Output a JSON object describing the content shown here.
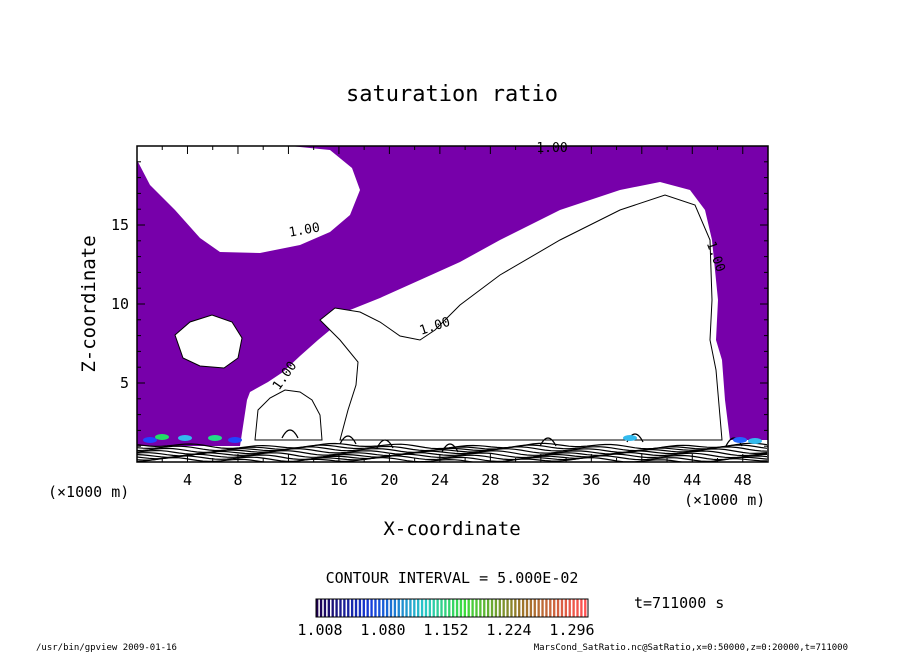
{
  "chart_data": {
    "type": "heatmap",
    "title": "saturation ratio",
    "xlabel": "X-coordinate",
    "ylabel": "Z-coordinate",
    "x_unit": "(×1000 m)",
    "z_unit": "(×1000 m)",
    "xlim": [
      0,
      50
    ],
    "ylim": [
      0,
      20
    ],
    "x_ticks": [
      4,
      8,
      12,
      16,
      20,
      24,
      28,
      32,
      36,
      40,
      44,
      48
    ],
    "y_ticks": [
      5,
      10,
      15
    ],
    "contour_labels": [
      "1.00",
      "1.00",
      "1.00",
      "1.00",
      "1.00"
    ],
    "contour_interval_text": "CONTOUR INTERVAL = 5.000E-02",
    "time_text": "t=711000 s",
    "colorbar_ticks": [
      "1.008",
      "1.080",
      "1.152",
      "1.224",
      "1.296"
    ],
    "fill_color": "#7700aa"
  },
  "footer": {
    "left": "/usr/bin/gpview  2009-01-16",
    "right": "MarsCond_SatRatio.nc@SatRatio,x=0:50000,z=0:20000,t=711000"
  }
}
